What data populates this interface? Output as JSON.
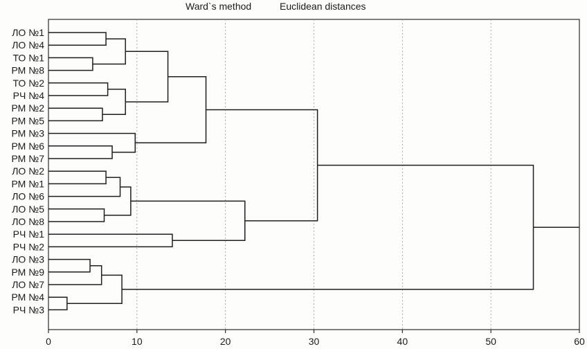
{
  "chart_data": {
    "type": "dendrogram",
    "title": "Ward`s method",
    "subtitle": "Euclidean distances",
    "xlabel": "",
    "ylabel": "",
    "xlim": [
      0,
      60
    ],
    "xticks": [
      0,
      10,
      20,
      30,
      40,
      50,
      60
    ],
    "grid": true,
    "leaves": [
      "ЛО №1",
      "ЛО №4",
      "ТО №1",
      "РМ №8",
      "ТО №2",
      "РЧ №4",
      "РМ №2",
      "РМ №5",
      "РМ №3",
      "РМ №6",
      "РМ №7",
      "ЛО №2",
      "РМ №1",
      "ЛО №6",
      "ЛО №5",
      "ЛО №8",
      "РЧ №1",
      "РЧ №2",
      "ЛО №3",
      "РМ №9",
      "ЛО №7",
      "РМ №4",
      "РЧ №3"
    ],
    "merges": [
      {
        "id": "c1",
        "children": [
          "ЛО №1",
          "ЛО №4"
        ],
        "height": 6.5
      },
      {
        "id": "c2",
        "children": [
          "ТО №1",
          "РМ №8"
        ],
        "height": 5.0
      },
      {
        "id": "c3",
        "children": [
          "c1",
          "c2"
        ],
        "height": 8.7
      },
      {
        "id": "c4",
        "children": [
          "ТО №2",
          "РЧ №4"
        ],
        "height": 6.7
      },
      {
        "id": "c5",
        "children": [
          "РМ №2",
          "РМ №5"
        ],
        "height": 6.1
      },
      {
        "id": "c6",
        "children": [
          "c4",
          "c5"
        ],
        "height": 8.7
      },
      {
        "id": "c7",
        "children": [
          "c3",
          "c6"
        ],
        "height": 13.5
      },
      {
        "id": "c8",
        "children": [
          "РМ №6",
          "РМ №7"
        ],
        "height": 7.2
      },
      {
        "id": "c9",
        "children": [
          "РМ №3",
          "c8"
        ],
        "height": 9.8
      },
      {
        "id": "c10",
        "children": [
          "c7",
          "c9"
        ],
        "height": 17.8
      },
      {
        "id": "c11",
        "children": [
          "ЛО №2",
          "РМ №1"
        ],
        "height": 6.5
      },
      {
        "id": "c12",
        "children": [
          "c11",
          "ЛО №6"
        ],
        "height": 8.1
      },
      {
        "id": "c13",
        "children": [
          "ЛО №5",
          "ЛО №8"
        ],
        "height": 6.3
      },
      {
        "id": "c14",
        "children": [
          "c12",
          "c13"
        ],
        "height": 9.3
      },
      {
        "id": "c15",
        "children": [
          "РЧ №1",
          "РЧ №2"
        ],
        "height": 14.0
      },
      {
        "id": "c16",
        "children": [
          "c14",
          "c15"
        ],
        "height": 22.2
      },
      {
        "id": "c17",
        "children": [
          "c10",
          "c16"
        ],
        "height": 30.4
      },
      {
        "id": "c18",
        "children": [
          "ЛО №3",
          "РМ №9"
        ],
        "height": 4.7
      },
      {
        "id": "c19",
        "children": [
          "c18",
          "ЛО №7"
        ],
        "height": 6.0
      },
      {
        "id": "c20",
        "children": [
          "РМ №4",
          "РЧ №3"
        ],
        "height": 2.1
      },
      {
        "id": "c21",
        "children": [
          "c19",
          "c20"
        ],
        "height": 8.3
      },
      {
        "id": "c22",
        "children": [
          "c17",
          "c21"
        ],
        "height": 54.8
      }
    ]
  }
}
